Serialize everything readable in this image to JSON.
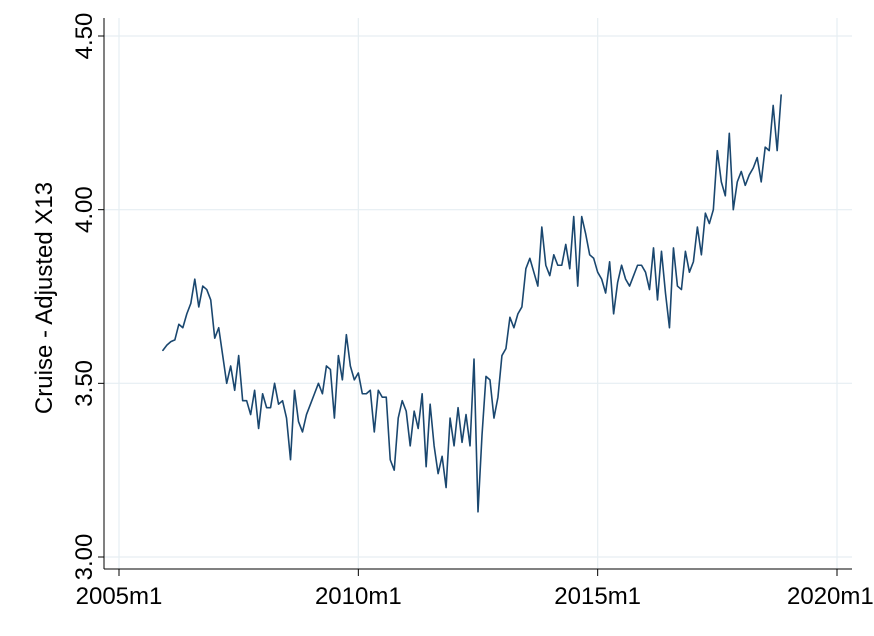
{
  "chart_data": {
    "type": "line",
    "title": "",
    "xlabel": "",
    "ylabel": "Cruise - Adjusted X13",
    "x_ticks": [
      "2005m1",
      "2010m1",
      "2015m1",
      "2020m1"
    ],
    "y_ticks": [
      "3.00",
      "3.50",
      "4.00",
      "4.50"
    ],
    "xlim": [
      "2005m1",
      "2020m1"
    ],
    "ylim": [
      3.0,
      4.5
    ],
    "grid": true,
    "legend": "none",
    "line_color": "#1a476f",
    "series": [
      {
        "start": "2005m12",
        "frequency": "monthly",
        "values": [
          3.595,
          3.61,
          3.62,
          3.625,
          3.67,
          3.66,
          3.7,
          3.73,
          3.8,
          3.72,
          3.78,
          3.77,
          3.74,
          3.63,
          3.66,
          3.58,
          3.5,
          3.55,
          3.48,
          3.58,
          3.45,
          3.45,
          3.41,
          3.48,
          3.37,
          3.47,
          3.43,
          3.43,
          3.5,
          3.44,
          3.45,
          3.4,
          3.28,
          3.48,
          3.39,
          3.36,
          3.41,
          3.44,
          3.47,
          3.5,
          3.47,
          3.55,
          3.54,
          3.4,
          3.58,
          3.51,
          3.64,
          3.55,
          3.51,
          3.53,
          3.47,
          3.47,
          3.48,
          3.36,
          3.48,
          3.46,
          3.46,
          3.28,
          3.25,
          3.4,
          3.45,
          3.42,
          3.32,
          3.42,
          3.37,
          3.47,
          3.26,
          3.44,
          3.32,
          3.24,
          3.29,
          3.2,
          3.4,
          3.32,
          3.43,
          3.33,
          3.41,
          3.32,
          3.57,
          3.13,
          3.35,
          3.52,
          3.51,
          3.4,
          3.46,
          3.58,
          3.6,
          3.69,
          3.66,
          3.7,
          3.72,
          3.83,
          3.86,
          3.82,
          3.78,
          3.95,
          3.84,
          3.81,
          3.87,
          3.84,
          3.84,
          3.9,
          3.83,
          3.98,
          3.78,
          3.98,
          3.93,
          3.87,
          3.86,
          3.82,
          3.8,
          3.76,
          3.85,
          3.7,
          3.79,
          3.84,
          3.8,
          3.78,
          3.81,
          3.84,
          3.84,
          3.82,
          3.77,
          3.89,
          3.74,
          3.88,
          3.76,
          3.66,
          3.89,
          3.78,
          3.77,
          3.88,
          3.82,
          3.85,
          3.95,
          3.87,
          3.99,
          3.96,
          4.0,
          4.17,
          4.08,
          4.04,
          4.22,
          4.0,
          4.08,
          4.11,
          4.07,
          4.1,
          4.12,
          4.15,
          4.08,
          4.18,
          4.17,
          4.3,
          4.17,
          4.33
        ]
      }
    ]
  }
}
